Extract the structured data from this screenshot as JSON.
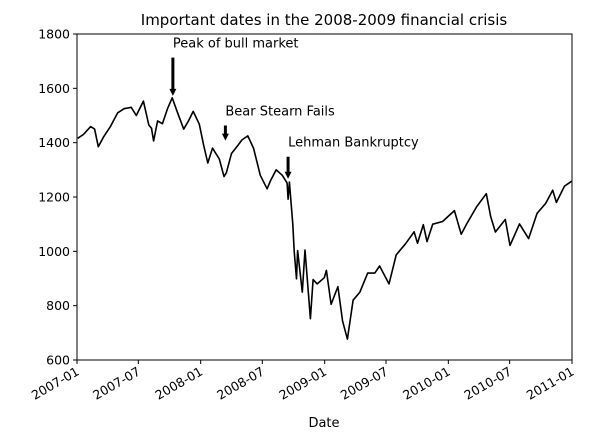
{
  "chart_data": {
    "type": "line",
    "title": "Important dates in the 2008-2009 financial crisis",
    "xlabel": "Date",
    "ylabel": "",
    "xlim": [
      "2007-01-01",
      "2011-01-01"
    ],
    "ylim": [
      600,
      1800
    ],
    "yticks": [
      600,
      800,
      1000,
      1200,
      1400,
      1600,
      1800
    ],
    "xticks": [
      "2007-01",
      "2007-07",
      "2008-01",
      "2008-07",
      "2009-01",
      "2009-07",
      "2010-01",
      "2010-07",
      "2011-01"
    ],
    "grid": false,
    "line_color": "#000000",
    "series": [
      {
        "x": [
          "2007-01-03",
          "2007-01-20",
          "2007-02-10",
          "2007-02-22",
          "2007-03-05",
          "2007-03-20",
          "2007-04-10",
          "2007-05-01",
          "2007-05-20",
          "2007-06-10",
          "2007-06-25",
          "2007-07-16",
          "2007-08-01",
          "2007-08-09",
          "2007-08-15",
          "2007-08-27",
          "2007-09-10",
          "2007-09-25",
          "2007-10-09",
          "2007-10-25",
          "2007-11-12",
          "2007-11-26",
          "2007-12-10",
          "2007-12-28",
          "2008-01-10",
          "2008-01-22",
          "2008-02-05",
          "2008-02-25",
          "2008-03-10",
          "2008-03-17",
          "2008-04-01",
          "2008-04-20",
          "2008-05-02",
          "2008-05-19",
          "2008-06-05",
          "2008-06-25",
          "2008-07-15",
          "2008-07-25",
          "2008-08-11",
          "2008-08-29",
          "2008-09-12",
          "2008-09-15",
          "2008-09-19",
          "2008-09-29",
          "2008-10-03",
          "2008-10-10",
          "2008-10-13",
          "2008-10-27",
          "2008-11-04",
          "2008-11-20",
          "2008-11-28",
          "2008-12-10",
          "2008-12-31",
          "2009-01-06",
          "2009-01-20",
          "2009-02-09",
          "2009-02-23",
          "2009-03-09",
          "2009-03-26",
          "2009-04-15",
          "2009-05-08",
          "2009-05-29",
          "2009-06-12",
          "2009-07-10",
          "2009-07-31",
          "2009-08-28",
          "2009-09-22",
          "2009-10-02",
          "2009-10-19",
          "2009-10-30",
          "2009-11-16",
          "2009-12-15",
          "2010-01-19",
          "2010-02-08",
          "2010-02-26",
          "2010-03-26",
          "2010-04-23",
          "2010-05-06",
          "2010-05-20",
          "2010-06-18",
          "2010-07-02",
          "2010-07-30",
          "2010-08-26",
          "2010-09-20",
          "2010-10-15",
          "2010-11-05",
          "2010-11-16",
          "2010-12-10",
          "2010-12-31"
        ],
        "y": [
          1416,
          1430,
          1459,
          1450,
          1385,
          1420,
          1460,
          1510,
          1525,
          1530,
          1500,
          1553,
          1465,
          1453,
          1406,
          1480,
          1470,
          1525,
          1565,
          1510,
          1450,
          1480,
          1515,
          1468,
          1390,
          1325,
          1380,
          1340,
          1275,
          1290,
          1360,
          1390,
          1410,
          1425,
          1380,
          1280,
          1230,
          1260,
          1300,
          1280,
          1251,
          1192,
          1255,
          1100,
          1000,
          899,
          1003,
          850,
          1005,
          752,
          896,
          880,
          903,
          930,
          805,
          870,
          743,
          677,
          820,
          850,
          920,
          920,
          946,
          880,
          987,
          1028,
          1072,
          1030,
          1098,
          1036,
          1100,
          1110,
          1150,
          1063,
          1105,
          1165,
          1212,
          1128,
          1071,
          1117,
          1022,
          1101,
          1047,
          1140,
          1176,
          1225,
          1180,
          1240,
          1258
        ]
      }
    ],
    "annotations": [
      {
        "text": "Peak of bull market",
        "x": "2007-10-11",
        "y": 1565,
        "text_y": 1750
      },
      {
        "text": "Bear Stearn Fails",
        "x": "2008-03-14",
        "y": 1400,
        "text_y": 1500
      },
      {
        "text": "Lehman Bankruptcy",
        "x": "2008-09-15",
        "y": 1260,
        "text_y": 1385
      }
    ]
  }
}
